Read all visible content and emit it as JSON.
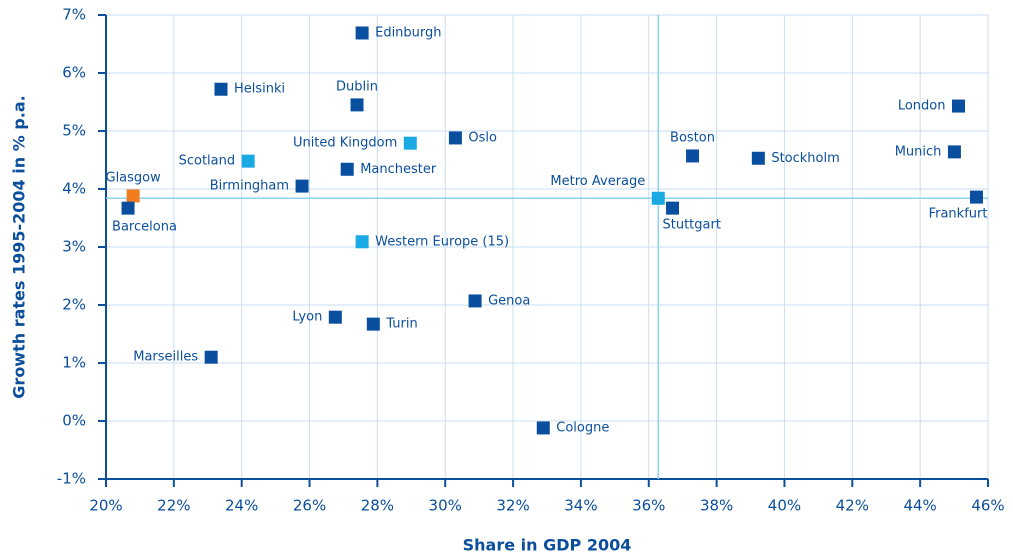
{
  "chart_data": {
    "type": "scatter",
    "xlabel": "Share in GDP 2004",
    "ylabel": "Growth rates 1995-2004 in % p.a.",
    "xlim": [
      20,
      46
    ],
    "ylim": [
      -1,
      7
    ],
    "xticks": [
      {
        "value": 20,
        "label": "20%"
      },
      {
        "value": 22,
        "label": "22%"
      },
      {
        "value": 24,
        "label": "24%"
      },
      {
        "value": 26,
        "label": "26%"
      },
      {
        "value": 28,
        "label": "28%"
      },
      {
        "value": 30,
        "label": "30%"
      },
      {
        "value": 32,
        "label": "32%"
      },
      {
        "value": 34,
        "label": "34%"
      },
      {
        "value": 36,
        "label": "36%"
      },
      {
        "value": 38,
        "label": "38%"
      },
      {
        "value": 40,
        "label": "40%"
      },
      {
        "value": 42,
        "label": "42%"
      },
      {
        "value": 44,
        "label": "44%"
      },
      {
        "value": 46,
        "label": "46%"
      }
    ],
    "yticks": [
      {
        "value": -1,
        "label": "-1%"
      },
      {
        "value": 0,
        "label": "0%"
      },
      {
        "value": 1,
        "label": "1%"
      },
      {
        "value": 2,
        "label": "2%"
      },
      {
        "value": 3,
        "label": "3%"
      },
      {
        "value": 4,
        "label": "4%"
      },
      {
        "value": 5,
        "label": "5%"
      },
      {
        "value": 6,
        "label": "6%"
      },
      {
        "value": 7,
        "label": "7%"
      }
    ],
    "grid": true,
    "points": [
      {
        "label": "Edinburgh",
        "x": 27.55,
        "y": 6.69,
        "color": "#0a4f9f"
      },
      {
        "label": "Helsinki",
        "x": 23.39,
        "y": 5.72,
        "color": "#0a4f9f"
      },
      {
        "label": "Dublin",
        "x": 27.4,
        "y": 5.45,
        "color": "#0a4f9f"
      },
      {
        "label": "London",
        "x": 45.13,
        "y": 5.43,
        "color": "#0a4f9f"
      },
      {
        "label": "United Kingdom",
        "x": 28.97,
        "y": 4.79,
        "color": "#19aae4"
      },
      {
        "label": "Oslo",
        "x": 30.3,
        "y": 4.88,
        "color": "#0a4f9f"
      },
      {
        "label": "Boston",
        "x": 37.29,
        "y": 4.57,
        "color": "#0a4f9f"
      },
      {
        "label": "Stockholm",
        "x": 39.23,
        "y": 4.53,
        "color": "#0a4f9f"
      },
      {
        "label": "Munich",
        "x": 45.01,
        "y": 4.64,
        "color": "#0a4f9f"
      },
      {
        "label": "Scotland",
        "x": 24.19,
        "y": 4.48,
        "color": "#19aae4"
      },
      {
        "label": "Manchester",
        "x": 27.11,
        "y": 4.34,
        "color": "#0a4f9f"
      },
      {
        "label": "Birmingham",
        "x": 25.78,
        "y": 4.05,
        "color": "#0a4f9f"
      },
      {
        "label": "Glasgow",
        "x": 20.8,
        "y": 3.88,
        "color": "#f07d1e"
      },
      {
        "label": "Barcelona",
        "x": 20.65,
        "y": 3.67,
        "color": "#0a4f9f"
      },
      {
        "label": "Metro Average",
        "x": 36.28,
        "y": 3.84,
        "color": "#19aae4"
      },
      {
        "label": "Stuttgart",
        "x": 36.7,
        "y": 3.67,
        "color": "#0a4f9f"
      },
      {
        "label": "Frankfurt",
        "x": 45.66,
        "y": 3.86,
        "color": "#0a4f9f"
      },
      {
        "label": "Western Europe (15)",
        "x": 27.55,
        "y": 3.09,
        "color": "#19aae4"
      },
      {
        "label": "Genoa",
        "x": 30.88,
        "y": 2.07,
        "color": "#0a4f9f"
      },
      {
        "label": "Lyon",
        "x": 26.76,
        "y": 1.79,
        "color": "#0a4f9f"
      },
      {
        "label": "Turin",
        "x": 27.88,
        "y": 1.67,
        "color": "#0a4f9f"
      },
      {
        "label": "Marseilles",
        "x": 23.1,
        "y": 1.1,
        "color": "#0a4f9f"
      },
      {
        "label": "Cologne",
        "x": 32.89,
        "y": -0.12,
        "color": "#0a4f9f"
      }
    ]
  }
}
